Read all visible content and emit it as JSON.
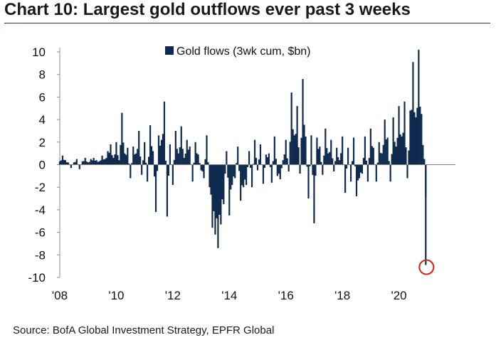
{
  "title": "Chart 10: Largest gold outflows ever past 3 weeks",
  "source": "Source: BofA Global Investment Strategy, EPFR Global",
  "chart_data": {
    "type": "bar",
    "title": "Chart 10: Largest gold outflows ever past 3 weeks",
    "xlabel": "",
    "ylabel": "",
    "series_name": "Gold flows (3wk cum, $bn)",
    "legend": "top-center",
    "xlim": [
      2008.0,
      2022.0
    ],
    "ylim": [
      -10,
      10
    ],
    "yticks": [
      10,
      8,
      6,
      4,
      2,
      0,
      -2,
      -4,
      -6,
      -8,
      -10
    ],
    "xticks": [
      2008,
      2010,
      2012,
      2014,
      2016,
      2018,
      2020
    ],
    "xtick_labels": [
      "'08",
      "'10",
      "'12",
      "'14",
      "'16",
      "'18",
      "'20"
    ],
    "bar_color": "#0f2a4f",
    "highlight_color": "#d62020",
    "highlight_point": {
      "x": 2020.95,
      "y": -8.9
    },
    "x": [
      2008.0,
      2008.1,
      2008.2,
      2008.3,
      2008.4,
      2008.5,
      2008.6,
      2008.7,
      2008.8,
      2008.9,
      2009.0,
      2009.1,
      2009.2,
      2009.3,
      2009.4,
      2009.5,
      2009.6,
      2009.7,
      2009.8,
      2009.9,
      2010.0,
      2010.1,
      2010.2,
      2010.3,
      2010.4,
      2010.5,
      2010.6,
      2010.7,
      2010.8,
      2010.9,
      2011.0,
      2011.1,
      2011.2,
      2011.3,
      2011.4,
      2011.5,
      2011.6,
      2011.7,
      2011.8,
      2011.9,
      2012.0,
      2012.1,
      2012.2,
      2012.3,
      2012.4,
      2012.5,
      2012.6,
      2012.7,
      2012.8,
      2012.9,
      2013.0,
      2013.1,
      2013.2,
      2013.3,
      2013.4,
      2013.5,
      2013.6,
      2013.7,
      2013.8,
      2013.9,
      2014.0,
      2014.1,
      2014.2,
      2014.3,
      2014.4,
      2014.5,
      2014.6,
      2014.7,
      2014.8,
      2014.9,
      2015.0,
      2015.1,
      2015.2,
      2015.3,
      2015.4,
      2015.5,
      2015.6,
      2015.7,
      2015.8,
      2015.9,
      2016.0,
      2016.1,
      2016.2,
      2016.3,
      2016.4,
      2016.5,
      2016.6,
      2016.7,
      2016.8,
      2016.9,
      2017.0,
      2017.1,
      2017.2,
      2017.3,
      2017.4,
      2017.5,
      2017.6,
      2017.7,
      2017.8,
      2017.9,
      2018.0,
      2018.1,
      2018.2,
      2018.3,
      2018.4,
      2018.5,
      2018.6,
      2018.7,
      2018.8,
      2018.9,
      2019.0,
      2019.1,
      2019.2,
      2019.3,
      2019.4,
      2019.5,
      2019.6,
      2019.7,
      2019.8,
      2019.9,
      2020.0,
      2020.1,
      2020.2,
      2020.3,
      2020.4,
      2020.5,
      2020.6,
      2020.7,
      2020.8,
      2020.9,
      2020.95
    ],
    "values": [
      0.3,
      0.8,
      0.4,
      0.2,
      -0.3,
      0.2,
      0.5,
      -0.4,
      0.3,
      0.6,
      0.2,
      0.5,
      0.6,
      0.4,
      0.3,
      0.8,
      0.5,
      1.2,
      1.8,
      0.6,
      2.0,
      0.4,
      4.6,
      1.0,
      1.5,
      -1.2,
      1.6,
      1.0,
      3.0,
      -0.9,
      2.0,
      -1.5,
      3.5,
      1.2,
      -4.2,
      2.6,
      2.2,
      5.6,
      -4.6,
      1.8,
      -1.8,
      3.0,
      1.0,
      3.4,
      0.6,
      2.2,
      1.6,
      -1.5,
      2.0,
      0.9,
      -0.5,
      -1.2,
      2.6,
      -2.0,
      -5.6,
      -6.2,
      -7.4,
      -5.3,
      -3.5,
      1.2,
      -4.5,
      -1.8,
      -1.2,
      1.6,
      -3.2,
      -2.0,
      -1.8,
      1.2,
      -2.0,
      2.2,
      -0.5,
      1.8,
      -1.7,
      0.9,
      1.0,
      -1.6,
      2.5,
      -1.0,
      -1.3,
      0.4,
      2.2,
      -0.6,
      6.4,
      2.6,
      5.2,
      -0.8,
      7.6,
      2.5,
      -3.0,
      2.6,
      -5.2,
      2.4,
      1.6,
      -0.9,
      3.2,
      1.0,
      2.2,
      -0.6,
      1.5,
      0.4,
      2.5,
      -2.5,
      1.5,
      -1.5,
      2.4,
      -2.8,
      -1.2,
      -0.8,
      2.5,
      -1.5,
      3.2,
      1.5,
      -1.5,
      2.0,
      1.0,
      4.0,
      2.4,
      -1.5,
      4.2,
      1.6,
      5.2,
      2.5,
      5.6,
      -1.2,
      4.8,
      9.1,
      4.2,
      10.2,
      4.5,
      0.5,
      -8.9
    ]
  }
}
